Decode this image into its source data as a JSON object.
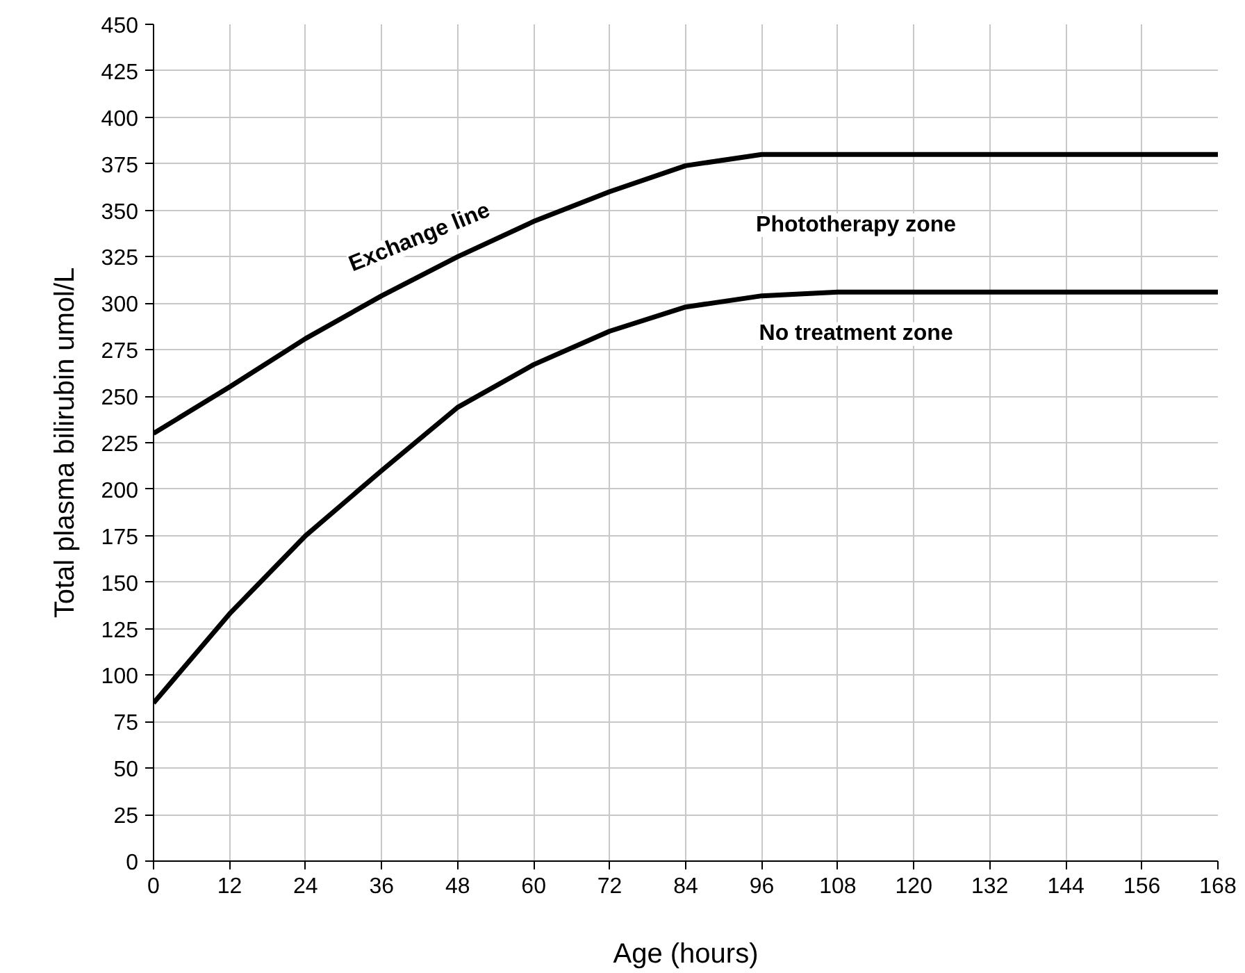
{
  "chart_data": {
    "type": "line",
    "xlabel": "Age (hours)",
    "ylabel": "Total plasma bilirubin umol/L",
    "x": [
      0,
      12,
      24,
      36,
      48,
      60,
      72,
      84,
      96,
      108,
      120,
      132,
      144,
      156,
      168
    ],
    "series": [
      {
        "color": "#000000",
        "values": [
          230,
          255,
          281,
          304,
          325,
          344,
          360,
          374,
          380,
          380,
          380,
          380,
          380,
          380,
          380
        ]
      },
      {
        "color": "#000000",
        "values": [
          85,
          133,
          175,
          210,
          244,
          267,
          285,
          298,
          304,
          306,
          306,
          306,
          306,
          306,
          306
        ]
      }
    ],
    "annotations": [
      "Exchange line",
      "Phototherapy zone",
      "No treatment zone"
    ],
    "xlim": [
      0,
      168
    ],
    "xticks": [
      0,
      12,
      24,
      36,
      48,
      60,
      72,
      84,
      96,
      108,
      120,
      132,
      144,
      156,
      168
    ],
    "ylim": [
      0,
      450
    ],
    "yticks": [
      0,
      25,
      50,
      75,
      100,
      125,
      150,
      175,
      200,
      225,
      250,
      275,
      300,
      325,
      350,
      375,
      400,
      425,
      450
    ],
    "grid": true,
    "marker": "none",
    "line_style": "solid"
  }
}
